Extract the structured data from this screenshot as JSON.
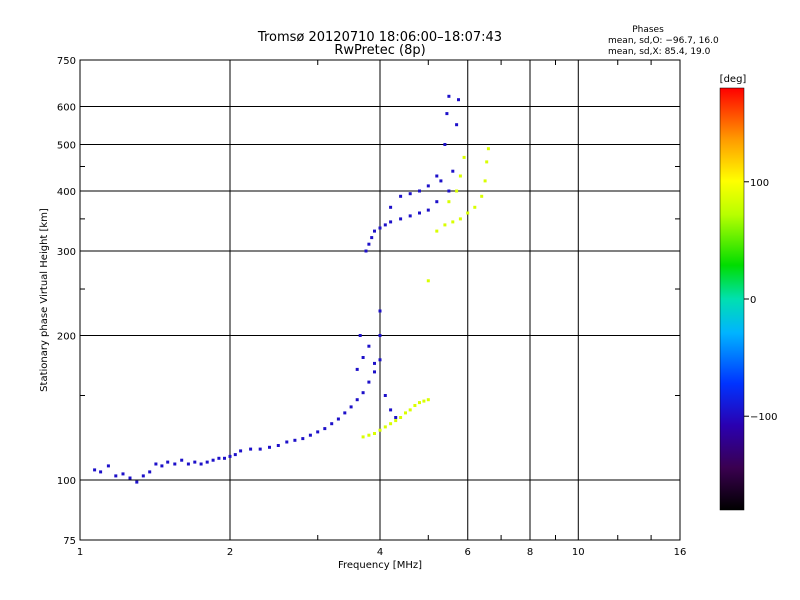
{
  "header": {
    "title_line1": "Tromsø 20120710 18:06:00–18:07:43",
    "title_line2": "RwPretec (8p)"
  },
  "info": {
    "heading": "Phases",
    "line_o": "mean, sd,O: −96.7, 16.0",
    "line_x": "mean, sd,X:  85.4, 19.0"
  },
  "colorbar": {
    "title": "[deg]",
    "vmin": -180,
    "vmax": 180,
    "ticks": [
      100,
      0,
      -100
    ],
    "tick_labels": [
      "100",
      "0",
      "−100"
    ]
  },
  "chart_data": {
    "type": "scatter",
    "title": "Tromsø 20120710 18:06:00–18:07:43",
    "subtitle": "RwPretec (8p)",
    "xlabel": "Frequency [MHz]",
    "ylabel": "Stationary phase Virtual Height [km]",
    "xscale": "log",
    "yscale": "log",
    "xlim": [
      1,
      16
    ],
    "ylim": [
      75,
      750
    ],
    "xticks": [
      1,
      2,
      4,
      6,
      8,
      10,
      16
    ],
    "yticks": [
      75,
      100,
      200,
      300,
      400,
      500,
      600,
      750
    ],
    "grid": true,
    "colorbar_label": "[deg]",
    "series": [
      {
        "mode": "O",
        "phase_mean": -96.7,
        "phase_sd": 16.0,
        "points": [
          {
            "x": 1.07,
            "y": 105
          },
          {
            "x": 1.1,
            "y": 104
          },
          {
            "x": 1.14,
            "y": 107
          },
          {
            "x": 1.18,
            "y": 102
          },
          {
            "x": 1.22,
            "y": 103
          },
          {
            "x": 1.26,
            "y": 101
          },
          {
            "x": 1.3,
            "y": 99
          },
          {
            "x": 1.34,
            "y": 102
          },
          {
            "x": 1.38,
            "y": 104
          },
          {
            "x": 1.42,
            "y": 108
          },
          {
            "x": 1.46,
            "y": 107
          },
          {
            "x": 1.5,
            "y": 109
          },
          {
            "x": 1.55,
            "y": 108
          },
          {
            "x": 1.6,
            "y": 110
          },
          {
            "x": 1.65,
            "y": 108
          },
          {
            "x": 1.7,
            "y": 109
          },
          {
            "x": 1.75,
            "y": 108
          },
          {
            "x": 1.8,
            "y": 109
          },
          {
            "x": 1.85,
            "y": 110
          },
          {
            "x": 1.9,
            "y": 111
          },
          {
            "x": 1.95,
            "y": 111
          },
          {
            "x": 2.0,
            "y": 112
          },
          {
            "x": 2.05,
            "y": 113
          },
          {
            "x": 2.1,
            "y": 115
          },
          {
            "x": 2.2,
            "y": 116
          },
          {
            "x": 2.3,
            "y": 116
          },
          {
            "x": 2.4,
            "y": 117
          },
          {
            "x": 2.5,
            "y": 118
          },
          {
            "x": 2.6,
            "y": 120
          },
          {
            "x": 2.7,
            "y": 121
          },
          {
            "x": 2.8,
            "y": 122
          },
          {
            "x": 2.9,
            "y": 124
          },
          {
            "x": 3.0,
            "y": 126
          },
          {
            "x": 3.1,
            "y": 128
          },
          {
            "x": 3.2,
            "y": 131
          },
          {
            "x": 3.3,
            "y": 134
          },
          {
            "x": 3.4,
            "y": 138
          },
          {
            "x": 3.5,
            "y": 142
          },
          {
            "x": 3.6,
            "y": 147
          },
          {
            "x": 3.7,
            "y": 152
          },
          {
            "x": 3.8,
            "y": 160
          },
          {
            "x": 3.9,
            "y": 168
          },
          {
            "x": 4.0,
            "y": 178
          },
          {
            "x": 3.6,
            "y": 170
          },
          {
            "x": 3.7,
            "y": 180
          },
          {
            "x": 3.8,
            "y": 190
          },
          {
            "x": 3.65,
            "y": 200
          },
          {
            "x": 3.9,
            "y": 175
          },
          {
            "x": 4.1,
            "y": 150
          },
          {
            "x": 4.2,
            "y": 140
          },
          {
            "x": 4.3,
            "y": 135
          },
          {
            "x": 4.0,
            "y": 200
          },
          {
            "x": 4.0,
            "y": 225
          },
          {
            "x": 3.75,
            "y": 300
          },
          {
            "x": 3.8,
            "y": 310
          },
          {
            "x": 3.85,
            "y": 320
          },
          {
            "x": 3.9,
            "y": 330
          },
          {
            "x": 4.0,
            "y": 335
          },
          {
            "x": 4.1,
            "y": 340
          },
          {
            "x": 4.2,
            "y": 345
          },
          {
            "x": 4.4,
            "y": 350
          },
          {
            "x": 4.6,
            "y": 355
          },
          {
            "x": 4.8,
            "y": 360
          },
          {
            "x": 5.0,
            "y": 365
          },
          {
            "x": 5.2,
            "y": 380
          },
          {
            "x": 5.3,
            "y": 420
          },
          {
            "x": 5.4,
            "y": 500
          },
          {
            "x": 5.45,
            "y": 580
          },
          {
            "x": 5.5,
            "y": 630
          },
          {
            "x": 4.2,
            "y": 370
          },
          {
            "x": 4.4,
            "y": 390
          },
          {
            "x": 4.6,
            "y": 395
          },
          {
            "x": 4.8,
            "y": 400
          },
          {
            "x": 5.0,
            "y": 410
          },
          {
            "x": 5.2,
            "y": 430
          },
          {
            "x": 5.7,
            "y": 550
          },
          {
            "x": 5.75,
            "y": 620
          },
          {
            "x": 5.6,
            "y": 440
          },
          {
            "x": 5.5,
            "y": 400
          }
        ]
      },
      {
        "mode": "X",
        "phase_mean": 85.4,
        "phase_sd": 19.0,
        "points": [
          {
            "x": 3.7,
            "y": 123
          },
          {
            "x": 3.8,
            "y": 124
          },
          {
            "x": 3.9,
            "y": 125
          },
          {
            "x": 4.0,
            "y": 127
          },
          {
            "x": 4.1,
            "y": 129
          },
          {
            "x": 4.2,
            "y": 131
          },
          {
            "x": 4.3,
            "y": 133
          },
          {
            "x": 4.4,
            "y": 135
          },
          {
            "x": 4.5,
            "y": 138
          },
          {
            "x": 4.6,
            "y": 140
          },
          {
            "x": 4.7,
            "y": 143
          },
          {
            "x": 4.8,
            "y": 145
          },
          {
            "x": 4.9,
            "y": 146
          },
          {
            "x": 5.0,
            "y": 147
          },
          {
            "x": 5.0,
            "y": 260
          },
          {
            "x": 5.2,
            "y": 330
          },
          {
            "x": 5.4,
            "y": 340
          },
          {
            "x": 5.6,
            "y": 345
          },
          {
            "x": 5.8,
            "y": 350
          },
          {
            "x": 6.0,
            "y": 360
          },
          {
            "x": 6.2,
            "y": 370
          },
          {
            "x": 6.4,
            "y": 390
          },
          {
            "x": 6.5,
            "y": 420
          },
          {
            "x": 6.55,
            "y": 460
          },
          {
            "x": 6.6,
            "y": 490
          },
          {
            "x": 5.5,
            "y": 380
          },
          {
            "x": 5.7,
            "y": 400
          },
          {
            "x": 5.8,
            "y": 430
          },
          {
            "x": 5.9,
            "y": 470
          }
        ]
      }
    ]
  }
}
